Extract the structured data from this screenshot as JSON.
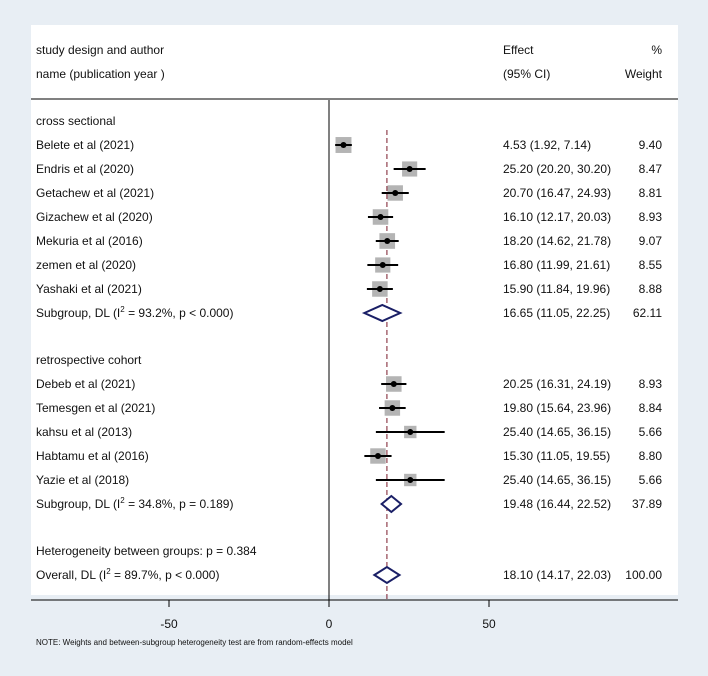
{
  "header": {
    "col1_line1": "study design and author",
    "col1_line2": "name (publication year )",
    "col2_line1": "Effect",
    "col2_line2": "(95% CI)",
    "col3_line1": "%",
    "col3_line2": "Weight"
  },
  "note": "NOTE: Weights and between-subgroup heterogeneity test are from random-effects model",
  "colors": {
    "background": "#e8eef4",
    "panel": "#ffffff",
    "diamond": "#1a1f66",
    "marker": "#000000",
    "box": "#b4b4b4",
    "ref_line": "#7a1a2a"
  },
  "chart_data": {
    "type": "forest",
    "x_ticks": [
      "-50",
      "0",
      "50"
    ],
    "xlim": [
      -92,
      100
    ],
    "overall_line": 18.1,
    "groups": [
      {
        "name": "cross sectional",
        "studies": [
          {
            "label": "Belete et al (2021)",
            "effect": 4.53,
            "lo": 1.92,
            "hi": 7.14,
            "ci_text": "4.53 (1.92, 7.14)",
            "weight": "9.40"
          },
          {
            "label": "Endris  et al  (2020)",
            "effect": 25.2,
            "lo": 20.2,
            "hi": 30.2,
            "ci_text": "25.20 (20.20, 30.20)",
            "weight": "8.47"
          },
          {
            "label": "Getachew et al (2021)",
            "effect": 20.7,
            "lo": 16.47,
            "hi": 24.93,
            "ci_text": "20.70 (16.47, 24.93)",
            "weight": "8.81"
          },
          {
            "label": "Gizachew et al (2020)",
            "effect": 16.1,
            "lo": 12.17,
            "hi": 20.03,
            "ci_text": "16.10 (12.17, 20.03)",
            "weight": "8.93"
          },
          {
            "label": "Mekuria et al (2016)",
            "effect": 18.2,
            "lo": 14.62,
            "hi": 21.78,
            "ci_text": "18.20 (14.62, 21.78)",
            "weight": "9.07"
          },
          {
            "label": "zemen et al (2020)",
            "effect": 16.8,
            "lo": 11.99,
            "hi": 21.61,
            "ci_text": "16.80 (11.99, 21.61)",
            "weight": "8.55"
          },
          {
            "label": "Yashaki et al (2021)",
            "effect": 15.9,
            "lo": 11.84,
            "hi": 19.96,
            "ci_text": "15.90 (11.84, 19.96)",
            "weight": "8.88"
          }
        ],
        "subgroup": {
          "label_pre": "Subgroup, DL (I",
          "label_sup": "2",
          "label_post": " = 93.2%, p < 0.000)",
          "effect": 16.65,
          "lo": 11.05,
          "hi": 22.25,
          "ci_text": "16.65 (11.05, 22.25)",
          "weight": "62.11"
        }
      },
      {
        "name": "retrospective cohort",
        "studies": [
          {
            "label": "Debeb et al  (2021)",
            "effect": 20.25,
            "lo": 16.31,
            "hi": 24.19,
            "ci_text": "20.25 (16.31, 24.19)",
            "weight": "8.93"
          },
          {
            "label": "Temesgen et al  (2021)",
            "effect": 19.8,
            "lo": 15.64,
            "hi": 23.96,
            "ci_text": "19.80 (15.64, 23.96)",
            "weight": "8.84"
          },
          {
            "label": "kahsu et al (2013)",
            "effect": 25.4,
            "lo": 14.65,
            "hi": 36.15,
            "ci_text": "25.40 (14.65, 36.15)",
            "weight": "5.66"
          },
          {
            "label": "Habtamu et al (2016)",
            "effect": 15.3,
            "lo": 11.05,
            "hi": 19.55,
            "ci_text": "15.30 (11.05, 19.55)",
            "weight": "8.80"
          },
          {
            "label": "Yazie et al  (2018)",
            "effect": 25.4,
            "lo": 14.65,
            "hi": 36.15,
            "ci_text": "25.40 (14.65, 36.15)",
            "weight": "5.66"
          }
        ],
        "subgroup": {
          "label_pre": "Subgroup, DL (I",
          "label_sup": "2",
          "label_post": " = 34.8%, p = 0.189)",
          "effect": 19.48,
          "lo": 16.44,
          "hi": 22.52,
          "ci_text": "19.48 (16.44, 22.52)",
          "weight": "37.89"
        }
      }
    ],
    "heterogeneity": "Heterogeneity between groups: p = 0.384",
    "overall": {
      "label_pre": "Overall, DL (I",
      "label_sup": "2",
      "label_post": " = 89.7%, p < 0.000)",
      "effect": 18.1,
      "lo": 14.17,
      "hi": 22.03,
      "ci_text": "18.10 (14.17, 22.03)",
      "weight": "100.00"
    }
  }
}
